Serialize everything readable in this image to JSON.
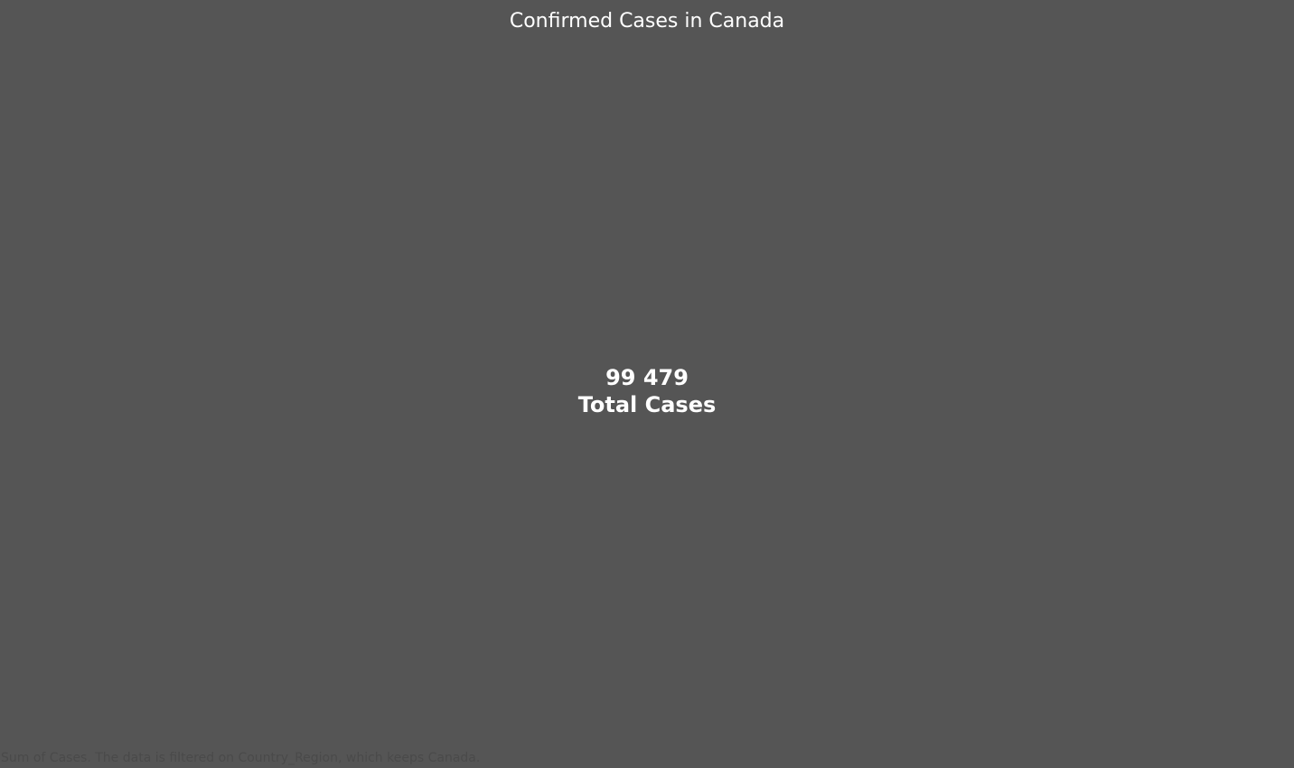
{
  "theme": {
    "background": "#555555",
    "text": "#ffffff",
    "caption": "#4a4a4a"
  },
  "chart_data": {
    "type": "table",
    "title": "Confirmed Cases in Canada",
    "value": 99479,
    "value_display": "99 479",
    "label": "Total Cases",
    "caption": "Sum of Cases. The data is filtered on Country_Region, which keeps Canada."
  }
}
